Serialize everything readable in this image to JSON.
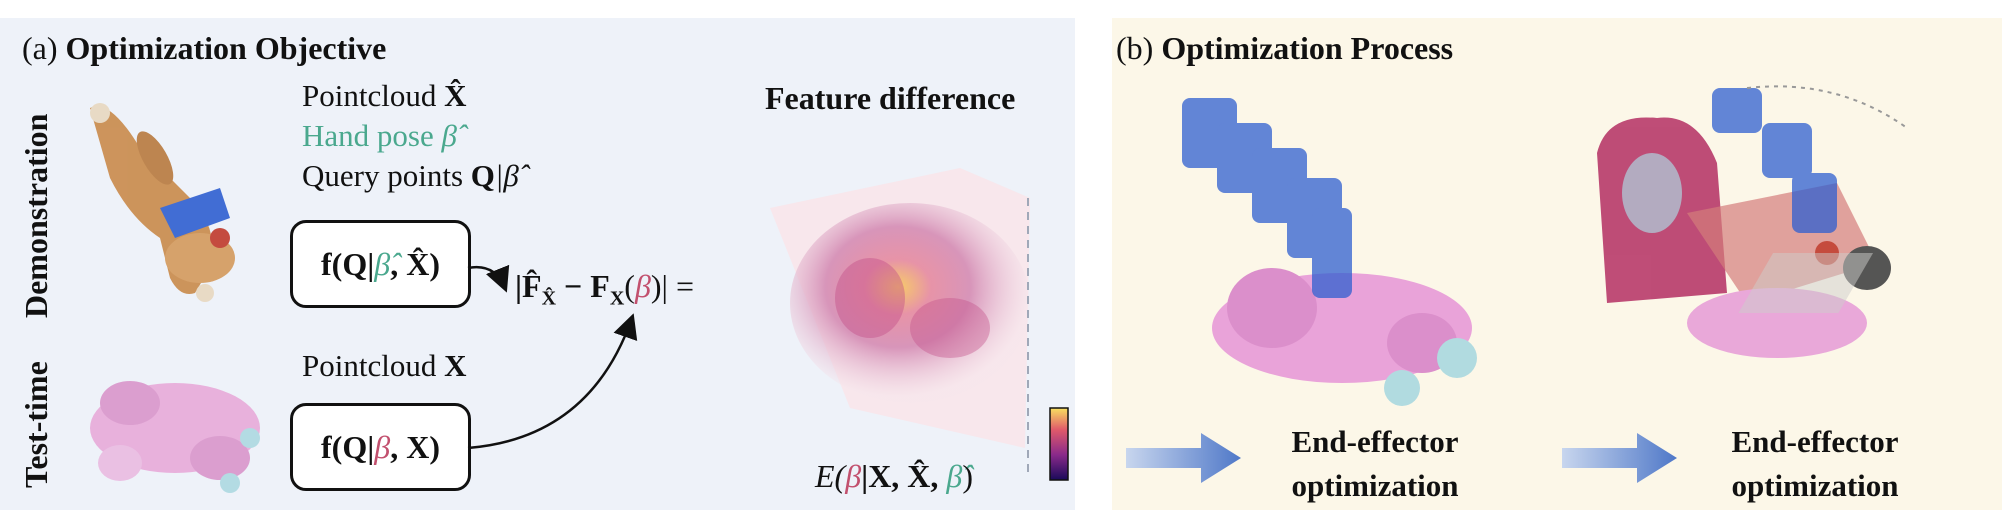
{
  "panel_a": {
    "title_letter": "(a)",
    "title_text": "Optimization Objective",
    "row_demo": "Demonstration",
    "row_test": "Test-time",
    "demo_pointcloud": "Pointcloud",
    "demo_pointcloud_sym": "X̂",
    "demo_handpose": "Hand pose",
    "demo_handpose_sym": "β̂",
    "demo_query": "Query points",
    "demo_query_sym_q": "Q",
    "demo_query_sym_beta": "|β̂",
    "box_demo": {
      "f": "f(Q|",
      "beta": "β̂",
      "rest": ", X̂)"
    },
    "box_test": {
      "f": "f(Q|",
      "beta": "β",
      "rest": ", X)"
    },
    "test_pointcloud": "Pointcloud",
    "test_pointcloud_sym": "X",
    "diff_expr": {
      "left": "|F̂",
      "sub1": "X̂",
      "mid": " − F",
      "sub2": "X",
      "open": "(",
      "beta": "β",
      "close": ")| ="
    },
    "feature_difference": "Feature difference",
    "energy": {
      "e": "E(",
      "beta": "β",
      "mid": "|X, X̂, ",
      "beta_hat": "β̂",
      "close": ")"
    }
  },
  "panel_b": {
    "title_letter": "(b)",
    "title_text": "Optimization Process",
    "step1": "End-effector optimization",
    "step2": "End-effector optimization"
  },
  "colors": {
    "panel_a_bg": "#eef2f9",
    "panel_b_bg": "#fcf7e8",
    "hand_pose_green": "#4aa88e",
    "beta_pink": "#c2506e",
    "hand_blue": "#2f5fd0",
    "arrow_blue": "#6f8fd0"
  }
}
